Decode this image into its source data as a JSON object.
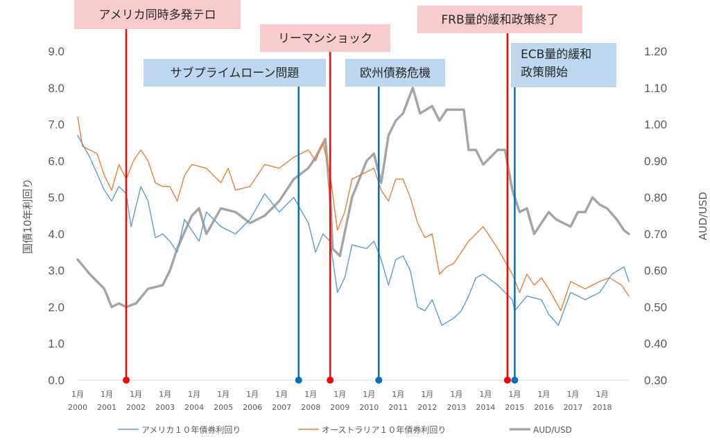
{
  "chart_data": {
    "type": "line",
    "x_start": "2000-01",
    "x_end": "2018-12",
    "xtick_month_label": "1月",
    "xtick_years": [
      "2000",
      "2001",
      "2002",
      "2003",
      "2004",
      "2005",
      "2006",
      "2007",
      "2008",
      "2009",
      "2010",
      "2011",
      "2012",
      "2013",
      "2014",
      "2015",
      "2016",
      "2017",
      "2018"
    ],
    "ylabel_left": "国債10年利回り",
    "ylabel_right": "AUD/USD",
    "ylim_left": [
      0,
      9
    ],
    "ylim_right": [
      0.3,
      1.2
    ],
    "yticks_left": [
      "0.0",
      "1.0",
      "2.0",
      "3.0",
      "4.0",
      "5.0",
      "6.0",
      "7.0",
      "8.0",
      "9.0"
    ],
    "yticks_right": [
      "0.30",
      "0.40",
      "0.50",
      "0.60",
      "0.70",
      "0.80",
      "0.90",
      "1.00",
      "1.10",
      "1.20"
    ],
    "grid": false,
    "legend_position": "bottom",
    "series": [
      {
        "name": "アメリカ１０年債券利回り",
        "axis": "left",
        "color": "#5B9BD5",
        "width": 1.4,
        "points": [
          [
            "2000-01",
            6.7
          ],
          [
            "2000-06",
            6.1
          ],
          [
            "2000-12",
            5.2
          ],
          [
            "2001-03",
            4.9
          ],
          [
            "2001-06",
            5.3
          ],
          [
            "2001-09",
            5.1
          ],
          [
            "2001-11",
            4.2
          ],
          [
            "2002-03",
            5.3
          ],
          [
            "2002-06",
            4.9
          ],
          [
            "2002-09",
            3.9
          ],
          [
            "2002-12",
            4.0
          ],
          [
            "2003-03",
            3.8
          ],
          [
            "2003-06",
            3.5
          ],
          [
            "2003-09",
            4.4
          ],
          [
            "2004-03",
            3.8
          ],
          [
            "2004-06",
            4.6
          ],
          [
            "2004-12",
            4.2
          ],
          [
            "2005-06",
            4.0
          ],
          [
            "2005-12",
            4.4
          ],
          [
            "2006-06",
            5.1
          ],
          [
            "2006-12",
            4.6
          ],
          [
            "2007-06",
            5.0
          ],
          [
            "2007-12",
            4.3
          ],
          [
            "2008-03",
            3.5
          ],
          [
            "2008-06",
            4.0
          ],
          [
            "2008-09",
            3.8
          ],
          [
            "2008-12",
            2.4
          ],
          [
            "2009-03",
            2.8
          ],
          [
            "2009-06",
            3.7
          ],
          [
            "2009-12",
            3.6
          ],
          [
            "2010-03",
            3.8
          ],
          [
            "2010-06",
            3.3
          ],
          [
            "2010-09",
            2.6
          ],
          [
            "2010-12",
            3.3
          ],
          [
            "2011-03",
            3.4
          ],
          [
            "2011-06",
            3.0
          ],
          [
            "2011-09",
            2.0
          ],
          [
            "2011-12",
            1.9
          ],
          [
            "2012-03",
            2.2
          ],
          [
            "2012-07",
            1.5
          ],
          [
            "2012-12",
            1.7
          ],
          [
            "2013-03",
            1.9
          ],
          [
            "2013-06",
            2.3
          ],
          [
            "2013-09",
            2.8
          ],
          [
            "2013-12",
            2.9
          ],
          [
            "2014-06",
            2.6
          ],
          [
            "2014-12",
            2.2
          ],
          [
            "2015-01",
            1.9
          ],
          [
            "2015-06",
            2.3
          ],
          [
            "2015-12",
            2.2
          ],
          [
            "2016-03",
            1.8
          ],
          [
            "2016-07",
            1.5
          ],
          [
            "2016-12",
            2.4
          ],
          [
            "2017-06",
            2.2
          ],
          [
            "2017-12",
            2.4
          ],
          [
            "2018-05",
            2.9
          ],
          [
            "2018-10",
            3.1
          ],
          [
            "2018-12",
            2.7
          ]
        ]
      },
      {
        "name": "オーストラリア１０年債券利回り",
        "axis": "left",
        "color": "#ED7D31",
        "width": 1.4,
        "points": [
          [
            "2000-01",
            7.2
          ],
          [
            "2000-03",
            6.4
          ],
          [
            "2000-09",
            6.2
          ],
          [
            "2000-12",
            5.6
          ],
          [
            "2001-03",
            5.2
          ],
          [
            "2001-06",
            5.9
          ],
          [
            "2001-09",
            5.5
          ],
          [
            "2001-12",
            6.0
          ],
          [
            "2002-03",
            6.3
          ],
          [
            "2002-06",
            6.0
          ],
          [
            "2002-09",
            5.4
          ],
          [
            "2002-12",
            5.3
          ],
          [
            "2003-03",
            5.3
          ],
          [
            "2003-06",
            4.9
          ],
          [
            "2003-09",
            5.6
          ],
          [
            "2003-12",
            5.9
          ],
          [
            "2004-06",
            5.8
          ],
          [
            "2004-12",
            5.4
          ],
          [
            "2005-03",
            5.8
          ],
          [
            "2005-06",
            5.2
          ],
          [
            "2005-12",
            5.3
          ],
          [
            "2006-06",
            5.9
          ],
          [
            "2006-12",
            5.8
          ],
          [
            "2007-06",
            6.1
          ],
          [
            "2007-12",
            6.3
          ],
          [
            "2008-03",
            6.0
          ],
          [
            "2008-06",
            6.5
          ],
          [
            "2008-09",
            5.6
          ],
          [
            "2008-12",
            4.1
          ],
          [
            "2009-03",
            4.6
          ],
          [
            "2009-06",
            5.5
          ],
          [
            "2009-12",
            5.7
          ],
          [
            "2010-03",
            5.8
          ],
          [
            "2010-06",
            5.2
          ],
          [
            "2010-09",
            4.9
          ],
          [
            "2010-12",
            5.5
          ],
          [
            "2011-03",
            5.5
          ],
          [
            "2011-06",
            5.0
          ],
          [
            "2011-09",
            4.3
          ],
          [
            "2011-12",
            3.9
          ],
          [
            "2012-03",
            4.0
          ],
          [
            "2012-06",
            2.9
          ],
          [
            "2012-09",
            3.1
          ],
          [
            "2012-12",
            3.2
          ],
          [
            "2013-03",
            3.5
          ],
          [
            "2013-06",
            3.8
          ],
          [
            "2013-09",
            4.0
          ],
          [
            "2013-12",
            4.2
          ],
          [
            "2014-06",
            3.6
          ],
          [
            "2014-12",
            2.9
          ],
          [
            "2015-03",
            2.4
          ],
          [
            "2015-06",
            2.9
          ],
          [
            "2015-09",
            2.6
          ],
          [
            "2015-12",
            2.8
          ],
          [
            "2016-03",
            2.5
          ],
          [
            "2016-08",
            1.9
          ],
          [
            "2016-12",
            2.7
          ],
          [
            "2017-06",
            2.5
          ],
          [
            "2017-12",
            2.7
          ],
          [
            "2018-04",
            2.8
          ],
          [
            "2018-09",
            2.6
          ],
          [
            "2018-12",
            2.3
          ]
        ]
      },
      {
        "name": "AUD/USD",
        "axis": "right",
        "color": "#A5A5A5",
        "width": 3.5,
        "points": [
          [
            "2000-01",
            0.63
          ],
          [
            "2000-06",
            0.59
          ],
          [
            "2000-12",
            0.55
          ],
          [
            "2001-03",
            0.5
          ],
          [
            "2001-06",
            0.51
          ],
          [
            "2001-09",
            0.5
          ],
          [
            "2002-01",
            0.51
          ],
          [
            "2002-06",
            0.55
          ],
          [
            "2002-12",
            0.56
          ],
          [
            "2003-03",
            0.6
          ],
          [
            "2003-06",
            0.66
          ],
          [
            "2003-12",
            0.75
          ],
          [
            "2004-03",
            0.77
          ],
          [
            "2004-06",
            0.7
          ],
          [
            "2004-12",
            0.77
          ],
          [
            "2005-06",
            0.76
          ],
          [
            "2005-12",
            0.73
          ],
          [
            "2006-06",
            0.75
          ],
          [
            "2006-12",
            0.79
          ],
          [
            "2007-06",
            0.85
          ],
          [
            "2007-12",
            0.88
          ],
          [
            "2008-03",
            0.91
          ],
          [
            "2008-07",
            0.96
          ],
          [
            "2008-09",
            0.8
          ],
          [
            "2008-10",
            0.66
          ],
          [
            "2009-01",
            0.64
          ],
          [
            "2009-06",
            0.8
          ],
          [
            "2009-12",
            0.9
          ],
          [
            "2010-03",
            0.92
          ],
          [
            "2010-06",
            0.84
          ],
          [
            "2010-09",
            0.97
          ],
          [
            "2010-12",
            1.01
          ],
          [
            "2011-03",
            1.03
          ],
          [
            "2011-07",
            1.1
          ],
          [
            "2011-10",
            1.03
          ],
          [
            "2012-03",
            1.05
          ],
          [
            "2012-06",
            1.01
          ],
          [
            "2012-09",
            1.04
          ],
          [
            "2012-12",
            1.04
          ],
          [
            "2013-04",
            1.04
          ],
          [
            "2013-06",
            0.93
          ],
          [
            "2013-09",
            0.93
          ],
          [
            "2013-12",
            0.89
          ],
          [
            "2014-06",
            0.93
          ],
          [
            "2014-09",
            0.93
          ],
          [
            "2014-12",
            0.82
          ],
          [
            "2015-03",
            0.76
          ],
          [
            "2015-06",
            0.77
          ],
          [
            "2015-09",
            0.7
          ],
          [
            "2015-12",
            0.73
          ],
          [
            "2016-03",
            0.76
          ],
          [
            "2016-06",
            0.74
          ],
          [
            "2016-12",
            0.72
          ],
          [
            "2017-03",
            0.76
          ],
          [
            "2017-06",
            0.76
          ],
          [
            "2017-09",
            0.8
          ],
          [
            "2017-12",
            0.78
          ],
          [
            "2018-03",
            0.77
          ],
          [
            "2018-07",
            0.74
          ],
          [
            "2018-10",
            0.71
          ],
          [
            "2018-12",
            0.7
          ]
        ]
      }
    ],
    "events": [
      {
        "label": "アメリカ同時多発テロ",
        "date": "2001-09",
        "color": "#FF0000",
        "box": "#F8CBCD"
      },
      {
        "label": "サブプライムローン問題",
        "date": "2007-08",
        "color": "#0070C0",
        "box": "#BDD7EE"
      },
      {
        "label": "リーマンショック",
        "date": "2008-09",
        "color": "#FF0000",
        "box": "#F8CBCD"
      },
      {
        "label": "欧州債務危機",
        "date": "2010-05",
        "color": "#0070C0",
        "box": "#BDD7EE"
      },
      {
        "label": "FRB量的緩和政策終了",
        "date": "2014-10",
        "color": "#FF0000",
        "box": "#F8CBCD"
      },
      {
        "label": "ECB量的緩和\n政策開始",
        "date": "2015-01",
        "color": "#0070C0",
        "box": "#BDD7EE"
      }
    ]
  }
}
